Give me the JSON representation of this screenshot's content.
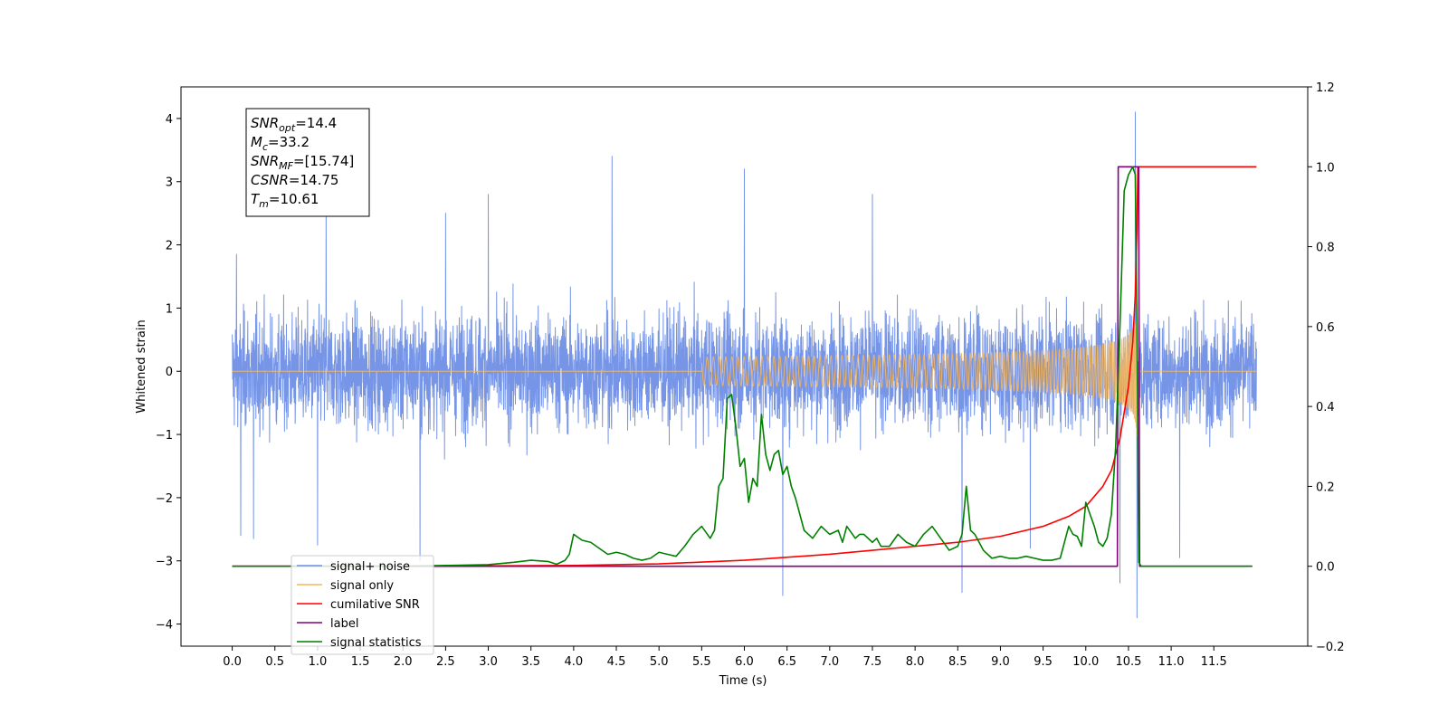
{
  "chart_data": {
    "type": "line",
    "title": "",
    "xlabel": "Time (s)",
    "ylabel": "Whitened strain",
    "xlim": [
      -0.6,
      12.6
    ],
    "ylim": [
      -4.35,
      4.5
    ],
    "y2lim": [
      -0.2,
      1.2
    ],
    "grid": false,
    "legend_position": "lower-left",
    "x_ticks": [
      "0.0",
      "0.5",
      "1.0",
      "1.5",
      "2.0",
      "2.5",
      "3.0",
      "3.5",
      "4.0",
      "4.5",
      "5.0",
      "5.5",
      "6.0",
      "6.5",
      "7.0",
      "7.5",
      "8.0",
      "8.5",
      "9.0",
      "9.5",
      "10.0",
      "10.5",
      "11.0",
      "11.5"
    ],
    "y_ticks": [
      "4",
      "3",
      "2",
      "1",
      "0",
      "−1",
      "−2",
      "−3",
      "−4"
    ],
    "y2_ticks": [
      "1.2",
      "1.0",
      "0.8",
      "0.6",
      "0.4",
      "0.2",
      "0.0",
      "−0.2"
    ],
    "annotation": {
      "lines": [
        {
          "base": "SNR",
          "sub": "opt",
          "rest": "=14.4"
        },
        {
          "base": "M",
          "sub": "c",
          "rest": "=33.2"
        },
        {
          "base": "SNR",
          "sub": "MF",
          "rest": "=[15.74]"
        },
        {
          "base": "CSNR",
          "sub": "",
          "rest": "=14.75"
        },
        {
          "base": "T",
          "sub": "m",
          "rest": "=10.61"
        }
      ]
    },
    "series": [
      {
        "name": "signal+ noise",
        "color": "#6f8fe6",
        "axis": "left",
        "x_range": [
          0.0,
          12.0
        ],
        "amplitude_typical": 1.8,
        "spikes": [
          [
            0.05,
            1.85
          ],
          [
            0.1,
            -2.6
          ],
          [
            0.25,
            -2.65
          ],
          [
            1.0,
            -2.75
          ],
          [
            1.1,
            2.6
          ],
          [
            2.2,
            -3.0
          ],
          [
            2.5,
            2.5
          ],
          [
            3.0,
            2.8
          ],
          [
            4.45,
            3.4
          ],
          [
            6.0,
            3.2
          ],
          [
            6.45,
            -3.55
          ],
          [
            7.5,
            2.8
          ],
          [
            8.55,
            -3.5
          ],
          [
            9.35,
            -2.8
          ],
          [
            10.4,
            -3.35
          ],
          [
            10.58,
            4.1
          ],
          [
            10.6,
            -3.9
          ],
          [
            11.1,
            -2.95
          ]
        ]
      },
      {
        "name": "signal only",
        "color": "#f5b65d",
        "axis": "left",
        "merger_time": 10.61,
        "peak_amplitude": 1.2
      },
      {
        "name": "cumilative SNR",
        "color": "#ff0000",
        "axis": "right",
        "x": [
          0.0,
          2.0,
          4.0,
          5.0,
          6.0,
          7.0,
          7.5,
          8.0,
          8.5,
          9.0,
          9.5,
          9.8,
          10.0,
          10.2,
          10.3,
          10.4,
          10.5,
          10.55,
          10.58,
          10.6,
          10.61,
          12.0
        ],
        "y": [
          0.0,
          0.0,
          0.002,
          0.006,
          0.015,
          0.03,
          0.04,
          0.05,
          0.06,
          0.075,
          0.1,
          0.125,
          0.15,
          0.2,
          0.24,
          0.32,
          0.45,
          0.56,
          0.68,
          0.85,
          1.0,
          1.0
        ]
      },
      {
        "name": "label",
        "color": "#800080",
        "axis": "right",
        "x": [
          0.0,
          10.37,
          10.38,
          10.62,
          10.63,
          11.95
        ],
        "y": [
          0.0,
          0.0,
          1.0,
          1.0,
          0.0,
          0.0
        ]
      },
      {
        "name": "signal statistics",
        "color": "#008000",
        "axis": "right",
        "x": [
          0.0,
          2.0,
          2.5,
          3.0,
          3.3,
          3.5,
          3.7,
          3.8,
          3.9,
          3.95,
          4.0,
          4.1,
          4.2,
          4.3,
          4.4,
          4.5,
          4.6,
          4.7,
          4.8,
          4.9,
          5.0,
          5.1,
          5.2,
          5.3,
          5.4,
          5.5,
          5.6,
          5.65,
          5.7,
          5.75,
          5.8,
          5.85,
          5.9,
          5.95,
          6.0,
          6.05,
          6.1,
          6.15,
          6.2,
          6.25,
          6.3,
          6.35,
          6.4,
          6.45,
          6.5,
          6.55,
          6.6,
          6.7,
          6.8,
          6.9,
          7.0,
          7.1,
          7.15,
          7.2,
          7.3,
          7.35,
          7.4,
          7.5,
          7.55,
          7.6,
          7.7,
          7.8,
          7.9,
          8.0,
          8.1,
          8.2,
          8.3,
          8.4,
          8.5,
          8.55,
          8.6,
          8.65,
          8.7,
          8.8,
          8.9,
          9.0,
          9.1,
          9.2,
          9.3,
          9.4,
          9.5,
          9.6,
          9.7,
          9.8,
          9.85,
          9.9,
          9.95,
          10.0,
          10.1,
          10.15,
          10.2,
          10.25,
          10.3,
          10.35,
          10.4,
          10.45,
          10.5,
          10.55,
          10.58,
          10.6,
          10.62,
          10.65,
          10.7,
          11.0,
          11.95
        ],
        "y": [
          0.0,
          0.0,
          0.002,
          0.004,
          0.01,
          0.015,
          0.012,
          0.005,
          0.015,
          0.03,
          0.08,
          0.065,
          0.06,
          0.045,
          0.03,
          0.035,
          0.03,
          0.02,
          0.015,
          0.02,
          0.035,
          0.03,
          0.025,
          0.05,
          0.08,
          0.1,
          0.07,
          0.09,
          0.2,
          0.22,
          0.42,
          0.43,
          0.35,
          0.25,
          0.27,
          0.16,
          0.22,
          0.2,
          0.38,
          0.28,
          0.24,
          0.28,
          0.29,
          0.23,
          0.25,
          0.2,
          0.17,
          0.09,
          0.07,
          0.1,
          0.08,
          0.09,
          0.06,
          0.1,
          0.07,
          0.08,
          0.08,
          0.06,
          0.07,
          0.05,
          0.05,
          0.08,
          0.06,
          0.05,
          0.08,
          0.1,
          0.07,
          0.04,
          0.05,
          0.08,
          0.2,
          0.09,
          0.08,
          0.04,
          0.02,
          0.025,
          0.02,
          0.02,
          0.025,
          0.02,
          0.015,
          0.015,
          0.02,
          0.1,
          0.08,
          0.075,
          0.05,
          0.16,
          0.1,
          0.06,
          0.05,
          0.07,
          0.13,
          0.3,
          0.6,
          0.94,
          0.98,
          1.0,
          0.98,
          0.6,
          0.01,
          0.0,
          0.0,
          0.0,
          0.0
        ]
      }
    ]
  }
}
